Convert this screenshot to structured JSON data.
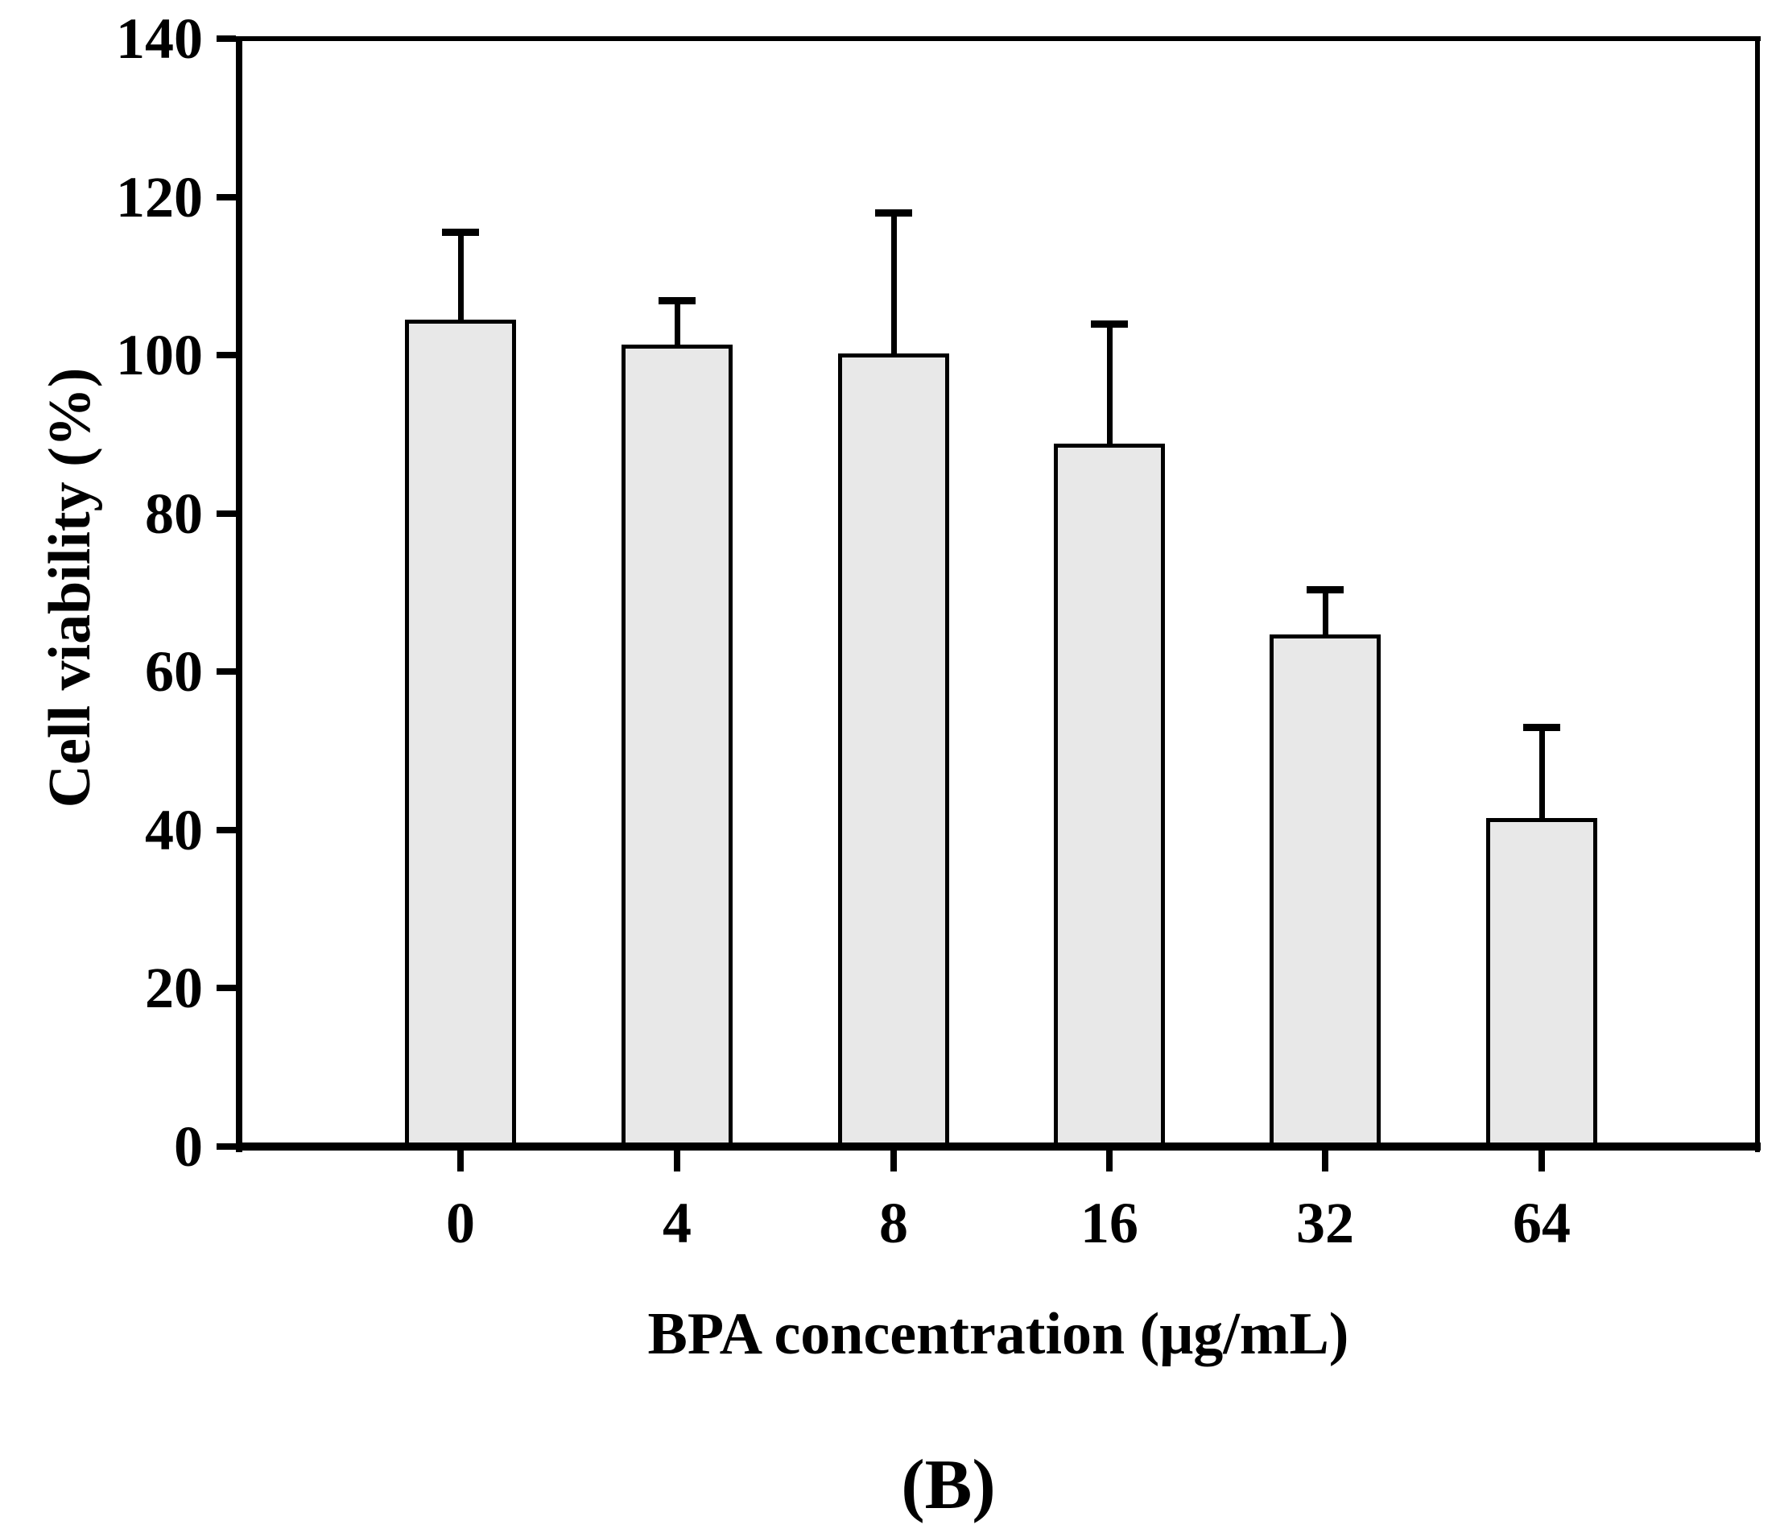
{
  "figure": {
    "caption": "(B)"
  },
  "chart_data": {
    "type": "bar",
    "title": "",
    "categories": [
      "0",
      "4",
      "8",
      "16",
      "32",
      "64"
    ],
    "values": [
      104.5,
      101.3,
      100.2,
      88.8,
      64.7,
      41.5
    ],
    "errors_upper": [
      11.1,
      5.6,
      17.8,
      15.2,
      5.7,
      11.5
    ],
    "xlabel": "BPA concentration (μg/mL)",
    "ylabel": "Cell viability (%)",
    "ylim": [
      0,
      140
    ],
    "yticks": [
      0,
      20,
      40,
      60,
      80,
      100,
      120,
      140
    ],
    "grid": false,
    "legend": null,
    "frame": "full-box",
    "error_bar_direction": "upper-only",
    "bar_fill": "#e8e8e8",
    "bar_edge": "#000000",
    "axis_color": "#000000",
    "text_color": "#000000",
    "background": "#ffffff"
  }
}
